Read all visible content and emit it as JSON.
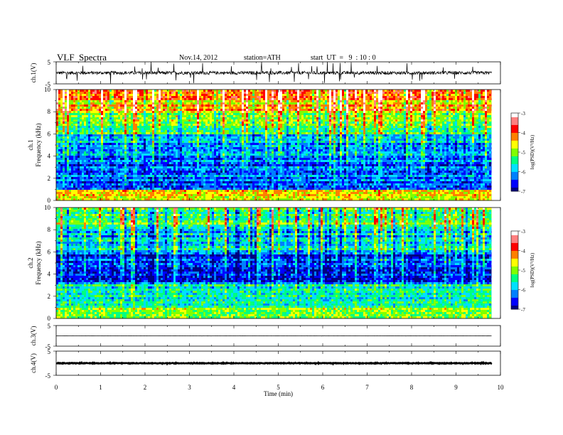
{
  "header": {
    "title": "VLF  Spectra",
    "date": "Nov.14, 2012",
    "station": "station=ATH",
    "start_ut": "start  UT  =   9  : 10 : 0"
  },
  "chart_data": [
    {
      "type": "line",
      "panel": "ch1-waveform",
      "ylabel": "ch.1(V)",
      "yticks": [
        "5",
        "-5"
      ],
      "ylim": [
        -5,
        5
      ],
      "x_range": [
        0,
        9.8
      ],
      "baseline": 0,
      "noise_amplitude": 1.5,
      "spikes_up_to": 5
    },
    {
      "type": "heatmap",
      "panel": "ch1-spectrogram",
      "ylabel": "ch.1\nFrequency  (kHz)",
      "ylabel_lines": [
        "ch.1",
        "Frequency  (kHz)"
      ],
      "yticks": [
        "0",
        "2",
        "4",
        "6",
        "8",
        "10"
      ],
      "ylim": [
        0,
        10
      ],
      "x_range": [
        0,
        9.8
      ],
      "colorbar": {
        "label": "log(PSD)(V²/Hz)",
        "ticks": [
          "-3",
          "-4",
          "-5",
          "-6",
          "-7"
        ],
        "range": [
          -7,
          -3
        ],
        "colors": [
          "#000080",
          "#0000ff",
          "#0080ff",
          "#00e0ff",
          "#00ff80",
          "#80ff00",
          "#ffff00",
          "#ff8000",
          "#ff0000",
          "#ff8080",
          "#ffffff"
        ]
      },
      "bands": [
        {
          "f_low": 0.0,
          "f_high": 1.0,
          "logpsd": -4.6
        },
        {
          "f_low": 1.0,
          "f_high": 4.0,
          "logpsd": -6.3
        },
        {
          "f_low": 4.0,
          "f_high": 6.0,
          "logpsd": -6.0
        },
        {
          "f_low": 6.0,
          "f_high": 8.0,
          "logpsd": -5.0
        },
        {
          "f_low": 8.0,
          "f_high": 10.0,
          "logpsd": -4.3
        }
      ]
    },
    {
      "type": "heatmap",
      "panel": "ch2-spectrogram",
      "ylabel": "ch.2\nFrequency  (kHz)",
      "ylabel_lines": [
        "ch.2",
        "Frequency  (kHz)"
      ],
      "yticks": [
        "0",
        "2",
        "4",
        "6",
        "8",
        "10"
      ],
      "ylim": [
        0,
        10
      ],
      "x_range": [
        0,
        9.8
      ],
      "colorbar": {
        "label": "log(PSD)(V²/Hz)",
        "ticks": [
          "-3",
          "-4",
          "-5",
          "-6",
          "-7"
        ],
        "range": [
          -7,
          -3
        ],
        "colors": [
          "#000080",
          "#0000ff",
          "#0080ff",
          "#00e0ff",
          "#00ff80",
          "#80ff00",
          "#ffff00",
          "#ff8000",
          "#ff0000",
          "#ff8080",
          "#ffffff"
        ]
      },
      "bands": [
        {
          "f_low": 0.0,
          "f_high": 1.0,
          "logpsd": -5.0
        },
        {
          "f_low": 1.0,
          "f_high": 3.0,
          "logpsd": -5.6
        },
        {
          "f_low": 3.0,
          "f_high": 6.0,
          "logpsd": -6.5
        },
        {
          "f_low": 6.0,
          "f_high": 8.0,
          "logpsd": -5.8
        },
        {
          "f_low": 8.0,
          "f_high": 10.0,
          "logpsd": -5.2
        }
      ]
    },
    {
      "type": "line",
      "panel": "ch3-waveform",
      "ylabel": "ch.3(V)",
      "yticks": [
        "5",
        "-5"
      ],
      "ylim": [
        -5,
        5
      ],
      "x_range": [
        0,
        9.8
      ],
      "baseline": 0,
      "noise_amplitude": 0.05,
      "spikes_up_to": 0.1
    },
    {
      "type": "line",
      "panel": "ch4-waveform",
      "ylabel": "ch.4(V)",
      "yticks": [
        "5",
        "-5"
      ],
      "ylim": [
        -5,
        5
      ],
      "x_range": [
        0,
        9.8
      ],
      "baseline": 0,
      "noise_amplitude": 0.25,
      "spikes_up_to": 0.25
    }
  ],
  "x_axis": {
    "label": "Time  (min)",
    "ticks": [
      "0",
      "1",
      "2",
      "3",
      "4",
      "5",
      "6",
      "7",
      "8",
      "9",
      "10"
    ],
    "xlim": [
      0,
      10
    ]
  }
}
